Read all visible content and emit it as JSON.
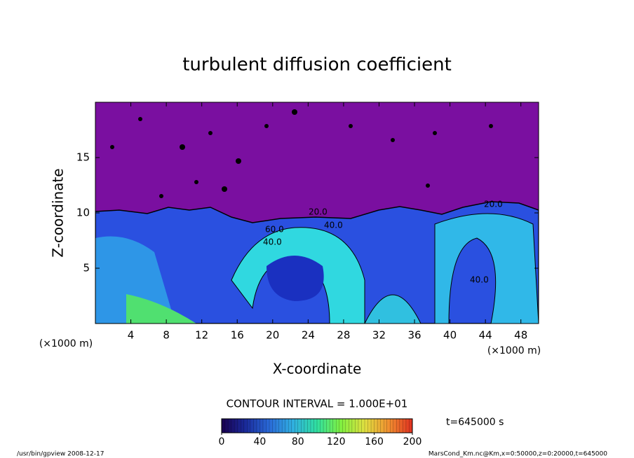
{
  "chart_data": {
    "type": "contour",
    "title": "turbulent diffusion coefficient",
    "xlabel": "X-coordinate",
    "ylabel": "Z-coordinate",
    "x_unit": "(×1000 m)",
    "y_unit": "(×1000 m)",
    "xlim": [
      0,
      50
    ],
    "xticks": [
      4,
      8,
      12,
      16,
      20,
      24,
      28,
      32,
      36,
      40,
      44,
      48
    ],
    "ylim": [
      0,
      20
    ],
    "yticks": [
      5,
      10,
      15
    ],
    "contour_labels": [
      "20.0",
      "60.0",
      "40.0",
      "40.0",
      "20.0",
      "40.0"
    ],
    "contour_interval": "CONTOUR INTERVAL = 1.000E+01",
    "time_label": "t=645000 s",
    "colorbar": {
      "lim": [
        0,
        200
      ],
      "ticks": [
        0,
        40,
        80,
        120,
        160,
        200
      ],
      "colors": [
        "#1a0050",
        "#1a2a9a",
        "#2a6ad8",
        "#30b0e0",
        "#30e0a0",
        "#80f040",
        "#e0e040",
        "#f09030",
        "#e03020"
      ]
    },
    "footer_left": "/usr/bin/gpview   2008-12-17",
    "footer_right": "MarsCond_Km.nc@Km,x=0:50000,z=0:20000,t=645000"
  }
}
